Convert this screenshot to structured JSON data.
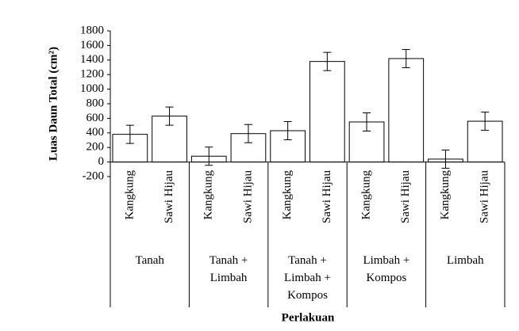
{
  "chart_data": {
    "type": "bar",
    "y_label": "Luas Daun Total (cm²)",
    "x_label": "Perlakuan",
    "categories": [
      "Tanah",
      "Tanah + Limbah",
      "Tanah + Limbah + Kompos",
      "Limbah + Kompos",
      "Limbah"
    ],
    "series": [
      {
        "name": "Kangkung",
        "color": "#ffffff",
        "values": [
          380,
          80,
          430,
          550,
          40
        ],
        "errors": [
          125,
          125,
          125,
          125,
          125
        ]
      },
      {
        "name": "Sawi Hijau",
        "color": "#ffffff",
        "values": [
          630,
          390,
          1380,
          1420,
          560
        ],
        "errors": [
          125,
          125,
          125,
          125,
          125
        ]
      }
    ],
    "ylim": [
      -200,
      1800
    ],
    "yticks": [
      -200,
      0,
      200,
      400,
      600,
      800,
      1000,
      1200,
      1400,
      1600,
      1800
    ],
    "grid": false
  }
}
